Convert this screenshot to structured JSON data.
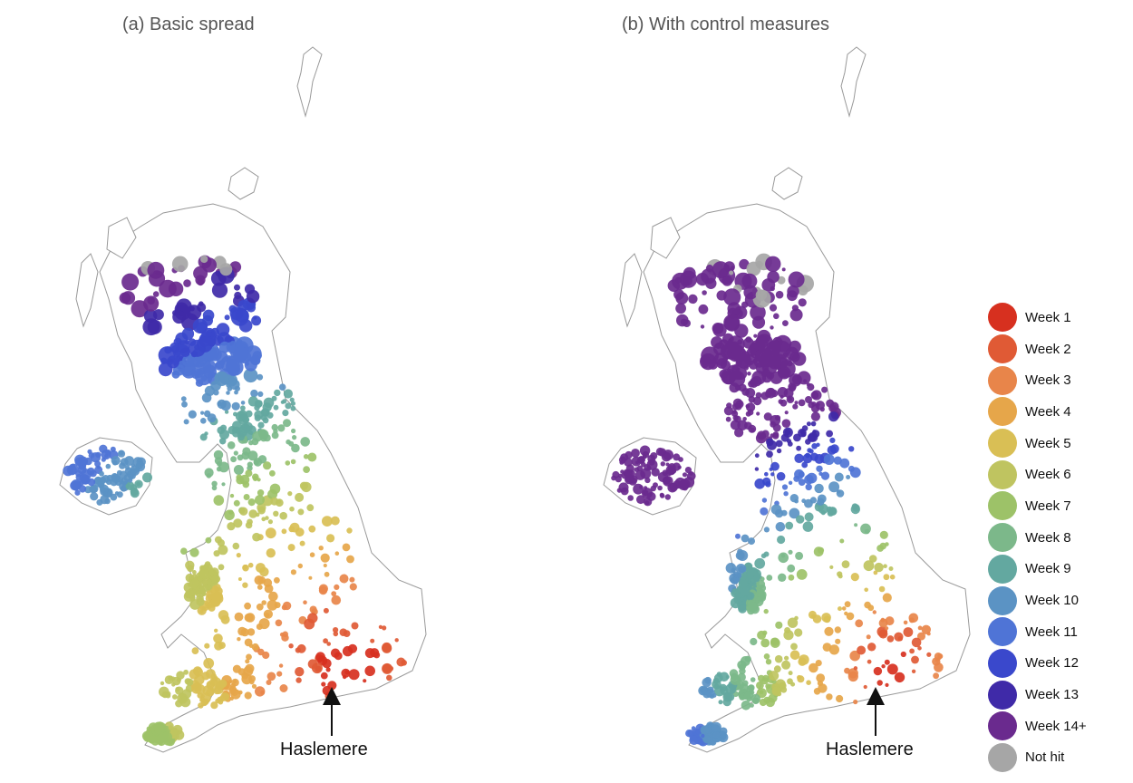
{
  "panels": [
    {
      "id": "a",
      "title": "(a) Basic spread",
      "annotation": "Haslemere"
    },
    {
      "id": "b",
      "title": "(b) With control measures",
      "annotation": "Haslemere"
    }
  ],
  "legend": {
    "items": [
      {
        "label": "Week 1",
        "color": "#d7301f"
      },
      {
        "label": "Week 2",
        "color": "#e05a35"
      },
      {
        "label": "Week 3",
        "color": "#e8854a"
      },
      {
        "label": "Week 4",
        "color": "#e6a64a"
      },
      {
        "label": "Week 5",
        "color": "#d9bf55"
      },
      {
        "label": "Week 6",
        "color": "#bfc460"
      },
      {
        "label": "Week 7",
        "color": "#9dc268"
      },
      {
        "label": "Week 8",
        "color": "#7cb88a"
      },
      {
        "label": "Week 9",
        "color": "#63a8a0"
      },
      {
        "label": "Week 10",
        "color": "#5b93c4"
      },
      {
        "label": "Week 11",
        "color": "#4f74d6"
      },
      {
        "label": "Week 12",
        "color": "#3a48cc"
      },
      {
        "label": "Week 13",
        "color": "#3f2aa8"
      },
      {
        "label": "Week 14+",
        "color": "#6a2a8e"
      },
      {
        "label": "Not hit",
        "color": "#a6a6a6"
      }
    ]
  }
}
